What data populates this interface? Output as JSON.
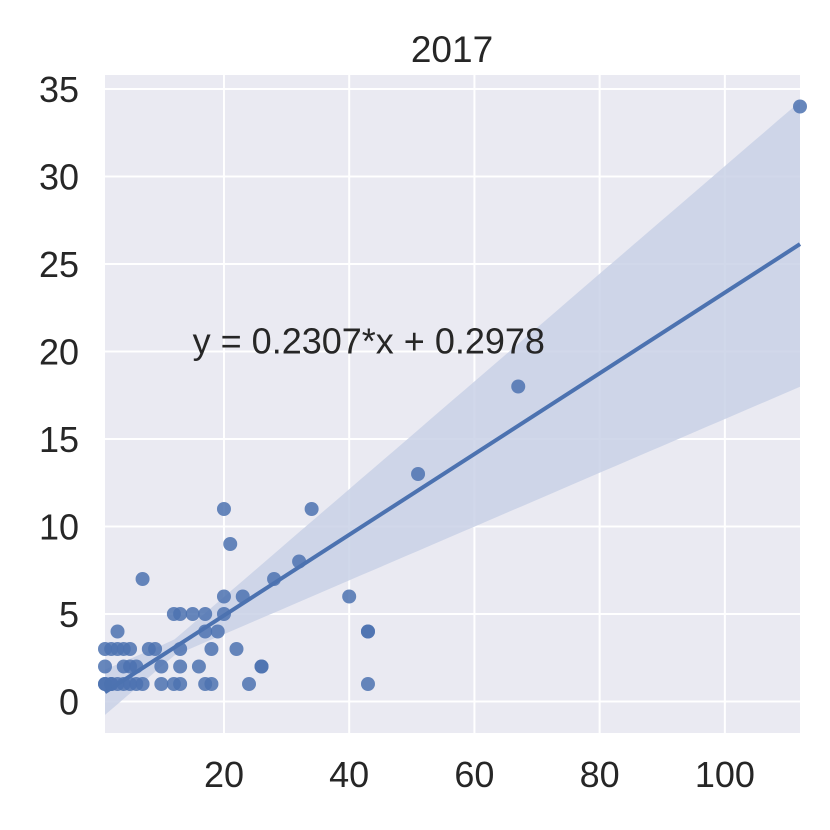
{
  "chart_data": {
    "type": "scatter",
    "title": "2017",
    "xlabel": "",
    "ylabel": "",
    "xlim": [
      1,
      112
    ],
    "ylim": [
      -1.8,
      35.8
    ],
    "xticks": [
      20,
      40,
      60,
      80,
      100
    ],
    "yticks": [
      0,
      5,
      10,
      15,
      20,
      25,
      30,
      35
    ],
    "grid": true,
    "colors": {
      "background": "#eaeaf2",
      "grid": "#ffffff",
      "points": "#4c72b0",
      "line": "#4c72b0",
      "band": "#c9d1e6"
    },
    "annotation": {
      "text": "y = 0.2307*x + 0.2978",
      "x": 15,
      "y": 20
    },
    "regression": {
      "slope": 0.2307,
      "intercept": 0.2978,
      "x_range": [
        1,
        112
      ],
      "ci_lower_at_xmax": 15.3,
      "ci_upper_at_xmax": 30.7
    },
    "points": [
      [
        1,
        1
      ],
      [
        1,
        1
      ],
      [
        1,
        2
      ],
      [
        1,
        3
      ],
      [
        2,
        1
      ],
      [
        2,
        3
      ],
      [
        2,
        1
      ],
      [
        3,
        1
      ],
      [
        3,
        3
      ],
      [
        3,
        4
      ],
      [
        4,
        1
      ],
      [
        4,
        2
      ],
      [
        4,
        3
      ],
      [
        5,
        1
      ],
      [
        5,
        2
      ],
      [
        5,
        3
      ],
      [
        6,
        1
      ],
      [
        6,
        2
      ],
      [
        7,
        1
      ],
      [
        7,
        7
      ],
      [
        8,
        3
      ],
      [
        9,
        3
      ],
      [
        10,
        1
      ],
      [
        10,
        2
      ],
      [
        12,
        1
      ],
      [
        12,
        5
      ],
      [
        13,
        1
      ],
      [
        13,
        2
      ],
      [
        13,
        3
      ],
      [
        13,
        5
      ],
      [
        15,
        5
      ],
      [
        16,
        2
      ],
      [
        17,
        1
      ],
      [
        17,
        4
      ],
      [
        17,
        5
      ],
      [
        18,
        1
      ],
      [
        18,
        3
      ],
      [
        19,
        4
      ],
      [
        20,
        5
      ],
      [
        20,
        6
      ],
      [
        20,
        11
      ],
      [
        21,
        9
      ],
      [
        22,
        3
      ],
      [
        23,
        6
      ],
      [
        24,
        1
      ],
      [
        26,
        2
      ],
      [
        26,
        2
      ],
      [
        28,
        7
      ],
      [
        32,
        8
      ],
      [
        34,
        11
      ],
      [
        40,
        6
      ],
      [
        43,
        1
      ],
      [
        43,
        4
      ],
      [
        43,
        4
      ],
      [
        51,
        13
      ],
      [
        67,
        18
      ],
      [
        112,
        34
      ]
    ]
  }
}
